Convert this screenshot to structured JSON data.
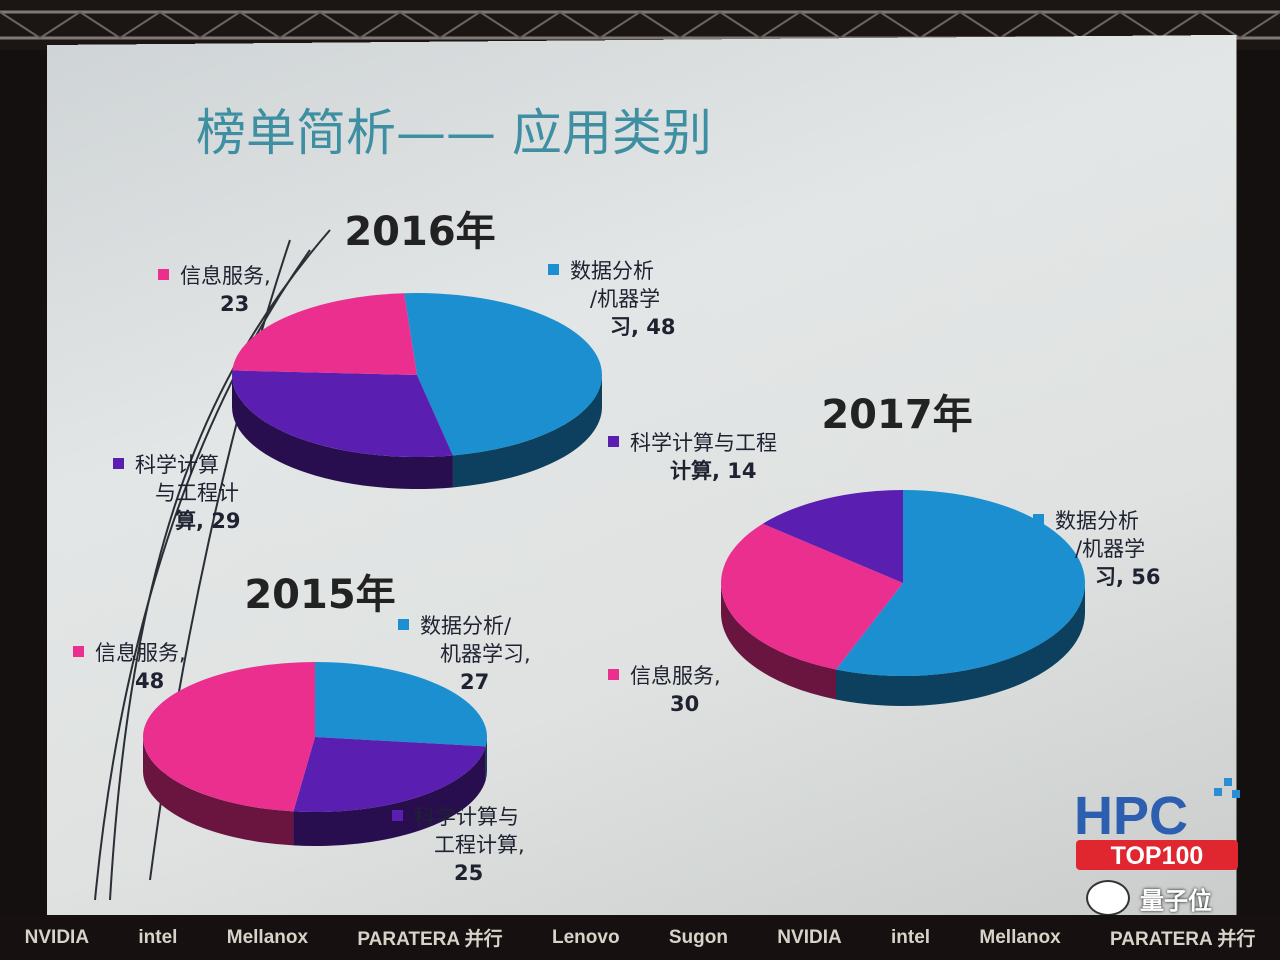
{
  "slide_title": "榜单简析—— 应用类别",
  "chart_data": [
    {
      "type": "pie",
      "title": "2016年",
      "categories": [
        "数据分析/机器学习",
        "科学计算与工程计算",
        "信息服务"
      ],
      "values": [
        48,
        29,
        23
      ],
      "labels": [
        {
          "lines": [
            "数据分析",
            "/机器学",
            "习, 48"
          ]
        },
        {
          "lines": [
            "科学计算",
            "与工程计",
            "算, 29"
          ]
        },
        {
          "lines": [
            "信息服务,",
            "23"
          ]
        }
      ]
    },
    {
      "type": "pie",
      "title": "2017年",
      "categories": [
        "数据分析/机器学习",
        "信息服务",
        "科学计算与工程计算"
      ],
      "values": [
        56,
        30,
        14
      ],
      "labels": [
        {
          "lines": [
            "数据分析",
            "/机器学",
            "习, 56"
          ]
        },
        {
          "lines": [
            "信息服务,",
            "30"
          ]
        },
        {
          "lines": [
            "科学计算与工程",
            "计算, 14"
          ]
        }
      ]
    },
    {
      "type": "pie",
      "title": "2015年",
      "categories": [
        "数据分析/机器学习",
        "科学计算与工程计算",
        "信息服务"
      ],
      "values": [
        27,
        25,
        48
      ],
      "labels": [
        {
          "lines": [
            "数据分析/",
            "机器学习,",
            "27"
          ]
        },
        {
          "lines": [
            "科学计算与",
            "工程计算,",
            "25"
          ]
        },
        {
          "lines": [
            "信息服务,",
            "48"
          ]
        }
      ]
    }
  ],
  "colors": {
    "数据分析/机器学习": "#1b8fd0",
    "科学计算与工程计算": "#5a1fb0",
    "信息服务": "#ea2f8f"
  },
  "logo": {
    "top": "HPC",
    "bottom": "TOP100"
  },
  "watermark": "量子位",
  "sponsors": [
    "NVIDIA",
    "intel",
    "Mellanox",
    "PARATERA 并行",
    "Lenovo",
    "Sugon",
    "NVIDIA",
    "intel",
    "Mellanox",
    "PARATERA 并行"
  ]
}
